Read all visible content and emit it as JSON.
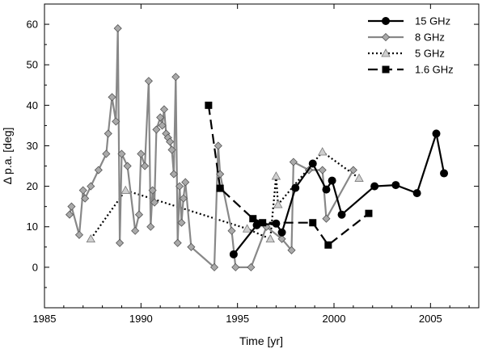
{
  "chart_data": {
    "type": "line",
    "xlabel": "Time [yr]",
    "ylabel": "Δ p.a. [deg]",
    "xlim": [
      1985,
      2007.5
    ],
    "ylim": [
      -10,
      65
    ],
    "xticks": [
      "1985",
      "1990",
      "1995",
      "2000",
      "2005"
    ],
    "xtick_values": [
      1985,
      1990,
      1995,
      2000,
      2005
    ],
    "yticks": [
      "0",
      "10",
      "20",
      "30",
      "40",
      "50",
      "60"
    ],
    "ytick_values": [
      0,
      10,
      20,
      30,
      40,
      50,
      60
    ],
    "legend_position": "top-right",
    "grid": false,
    "series": [
      {
        "name": "15 GHz",
        "color": "#000000",
        "line": "solid",
        "marker": "circle",
        "x": [
          1994.8,
          1996.0,
          1997.0,
          1997.3,
          1998.0,
          1998.9,
          1999.6,
          1999.9,
          2000.4,
          2002.1,
          2003.2,
          2004.3,
          2005.3,
          2005.7
        ],
        "y": [
          3.2,
          10.4,
          10.8,
          8.6,
          19.6,
          25.6,
          19.2,
          21.4,
          13.0,
          20.0,
          20.3,
          18.3,
          33.0,
          23.2
        ]
      },
      {
        "name": "8 GHz",
        "color": "#888888",
        "line": "solid",
        "marker": "diamond",
        "x": [
          1986.3,
          1986.4,
          1986.8,
          1987.0,
          1987.1,
          1987.4,
          1987.8,
          1988.2,
          1988.3,
          1988.5,
          1988.7,
          1988.8,
          1988.9,
          1989.0,
          1989.3,
          1989.7,
          1989.9,
          1990.0,
          1990.2,
          1990.4,
          1990.5,
          1990.6,
          1990.7,
          1990.8,
          1991.0,
          1991.1,
          1991.2,
          1991.3,
          1991.4,
          1991.5,
          1991.6,
          1991.7,
          1991.8,
          1991.9,
          1992.0,
          1992.1,
          1992.2,
          1992.3,
          1992.6,
          1993.8,
          1994.0,
          1994.1,
          1994.7,
          1994.9,
          1995.7,
          1996.5,
          1997.3,
          1997.8,
          1997.9,
          1998.7,
          1999.4,
          1999.6,
          2001.0
        ],
        "y": [
          13.0,
          15.0,
          8.0,
          19.0,
          17.0,
          20.0,
          24.0,
          28.0,
          33.0,
          42.0,
          36.0,
          59.0,
          6.0,
          28.0,
          25.0,
          9.0,
          13.0,
          28.0,
          25.0,
          46.0,
          10.0,
          19.0,
          16.0,
          34.0,
          37.0,
          35.0,
          39.0,
          33.0,
          32.0,
          31.0,
          29.0,
          23.0,
          47.0,
          6.0,
          20.0,
          11.0,
          17.0,
          21.0,
          5.0,
          0.0,
          30.0,
          23.0,
          9.0,
          0.0,
          0.0,
          10.0,
          7.0,
          4.2,
          26.0,
          24.0,
          24.0,
          12.0,
          24.0
        ]
      },
      {
        "name": "5 GHz",
        "color": "#000000",
        "line": "dotted",
        "marker": "triangle",
        "x": [
          1987.4,
          1989.2,
          1995.5,
          1996.7,
          1997.0,
          1997.1,
          1999.4,
          2001.3
        ],
        "y": [
          7.0,
          19.0,
          9.5,
          7.0,
          22.5,
          15.5,
          28.5,
          22.0
        ]
      },
      {
        "name": "1.6 GHz",
        "color": "#000000",
        "line": "dashed",
        "marker": "square",
        "x": [
          1993.5,
          1994.1,
          1995.8,
          1996.3,
          1998.9,
          1999.7,
          2001.8
        ],
        "y": [
          40.0,
          19.5,
          12.0,
          11.0,
          11.0,
          5.5,
          13.3
        ]
      }
    ]
  }
}
